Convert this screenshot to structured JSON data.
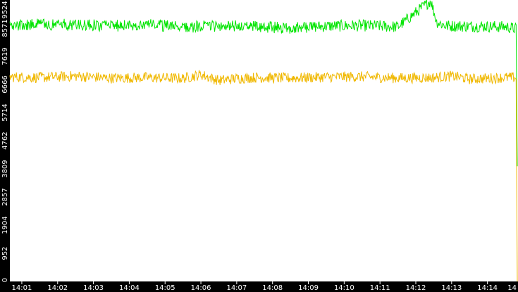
{
  "chart_data": {
    "type": "line",
    "title": "",
    "xlabel": "",
    "ylabel": "",
    "ylim": [
      0,
      9524
    ],
    "y_ticks": [
      "0",
      "952",
      "1904",
      "2857",
      "3809",
      "4762",
      "5714",
      "6666",
      "7619",
      "8571",
      "9524"
    ],
    "x_ticks": [
      "14:01",
      "14:02",
      "14:03",
      "14:04",
      "14:05",
      "14:06",
      "14:07",
      "14:08",
      "14:09",
      "14:10",
      "14:11",
      "14:12",
      "14:13",
      "14:14",
      "14"
    ],
    "x_range": [
      "14:00:40",
      "14:14:50"
    ],
    "grid": false,
    "legend": "none",
    "series": [
      {
        "color": "#00e400",
        "times": [
          "14:00:40",
          "14:01:30",
          "14:02:30",
          "14:03:30",
          "14:04:30",
          "14:05:30",
          "14:06:30",
          "14:07:30",
          "14:08:30",
          "14:09:30",
          "14:10:30",
          "14:11:30",
          "14:12:25",
          "14:12:35",
          "14:12:50",
          "14:13:30",
          "14:14:30",
          "14:14:48",
          "14:14:50"
        ],
        "values": [
          8650,
          8700,
          8680,
          8650,
          8700,
          8600,
          8650,
          8620,
          8580,
          8640,
          8660,
          8620,
          9500,
          8780,
          8650,
          8640,
          8620,
          8550,
          3900
        ],
        "noise": 200
      },
      {
        "color": "#f0b800",
        "times": [
          "14:00:40",
          "14:01:30",
          "14:02:30",
          "14:03:30",
          "14:04:30",
          "14:05:30",
          "14:06:00",
          "14:06:30",
          "14:07:00",
          "14:07:30",
          "14:08:30",
          "14:09:30",
          "14:10:30",
          "14:11:30",
          "14:12:30",
          "14:13:00",
          "14:13:30",
          "14:14:30",
          "14:14:48",
          "14:14:50"
        ],
        "values": [
          6920,
          6900,
          6950,
          6880,
          6900,
          6870,
          7000,
          6800,
          6870,
          6900,
          6880,
          6920,
          6930,
          6880,
          6900,
          6950,
          6850,
          6900,
          6900,
          0
        ],
        "noise": 180
      }
    ]
  }
}
